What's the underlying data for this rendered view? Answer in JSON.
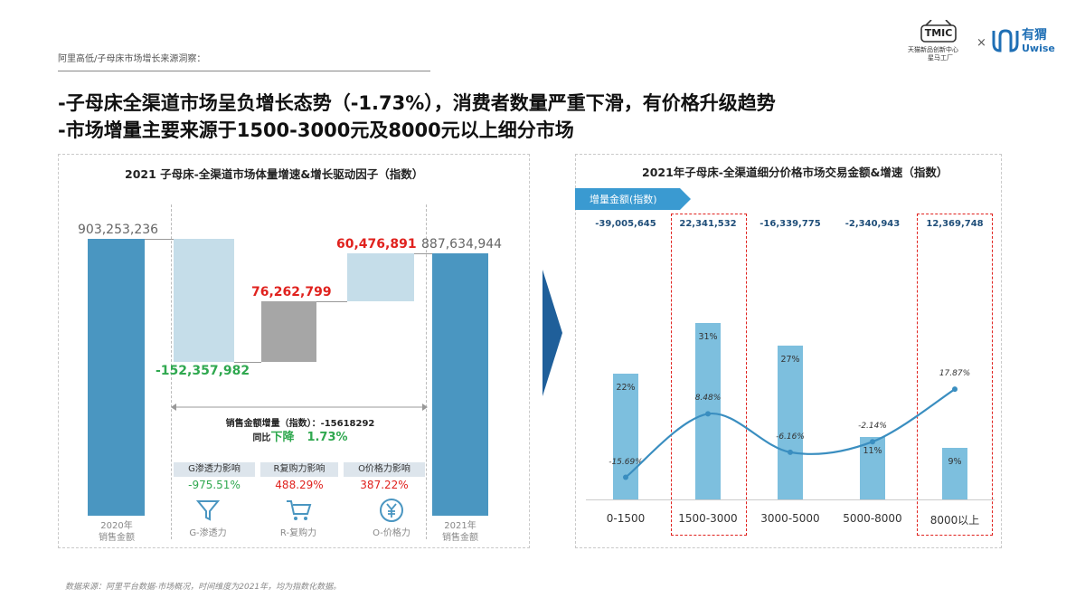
{
  "breadcrumb": "阿里高低/子母床市场增长来源洞察：",
  "headline": {
    "line1": "-子母床全渠道市场呈负增长态势（-1.73%），消费者数量严重下滑，有价格升级趋势",
    "line2": "-市场增量主要来源于1500-3000元及8000元以上细分市场"
  },
  "logos": {
    "tmic_badge": "TMIC",
    "tmic_text": "天猫新品创新中心",
    "tmic_sub": "星马工厂",
    "times": "×",
    "uwise_cn": "有猬",
    "uwise_en": "Uwise"
  },
  "left_chart": {
    "title": "2021 子母床-全渠道市场体量增速&增长驱动因子（指数）",
    "labels": {
      "start_value": "903,253,236",
      "g_value": "-152,357,982",
      "r_value": "76,262,799",
      "o_value": "60,476,891",
      "end_value": "887,634,944"
    },
    "summary": {
      "line1": "销售金额增量（指数）：-15618292",
      "tongbi": "同比",
      "xiajiang": "下降",
      "pct": "1.73%"
    },
    "factors": [
      {
        "head": "G渗透力影响",
        "value": "-975.51%",
        "color": "#2fa84f"
      },
      {
        "head": "R复购力影响",
        "value": "488.29%",
        "color": "#e0221e"
      },
      {
        "head": "O价格力影响",
        "value": "387.22%",
        "color": "#e0221e"
      }
    ],
    "bottom_labels": {
      "y2020": "2020年",
      "y2020_sub": "销售金额",
      "g": "G-渗透力",
      "r": "R-复购力",
      "o": "O-价格力",
      "y2021": "2021年",
      "y2021_sub": "销售金额"
    }
  },
  "right_chart": {
    "title": "2021年子母床-全渠道细分价格市场交易金额&增速（指数）",
    "tag": "增量金额(指数)"
  },
  "chart_data": [
    {
      "type": "bar",
      "subtype": "waterfall",
      "title": "2021 子母床-全渠道市场体量增速&增长驱动因子（指数）",
      "categories": [
        "2020年销售金额",
        "G-渗透力",
        "R-复购力",
        "O-价格力",
        "2021年销售金额"
      ],
      "values": [
        903253236,
        -152357982,
        76262799,
        60476891,
        887634944
      ],
      "colors": {
        "total": "#4a96c1",
        "g": "#c5dde9",
        "r": "#a6a6a6",
        "o": "#c5dde9"
      }
    },
    {
      "type": "bar",
      "title": "2021年子母床-全渠道细分价格市场交易金额&增速（指数）",
      "categories": [
        "0-1500",
        "1500-3000",
        "3000-5000",
        "5000-8000",
        "8000以上"
      ],
      "series": [
        {
          "name": "",
          "kind": "bar",
          "values": [
            22,
            31,
            27,
            11,
            9
          ],
          "labels": [
            "22%",
            "31%",
            "27%",
            "11%",
            "9%"
          ]
        },
        {
          "name": "",
          "kind": "line",
          "values": [
            -15.69,
            8.48,
            -6.16,
            -2.14,
            17.87
          ],
          "labels": [
            "-15.69%",
            "8.48%",
            "-6.16%",
            "-2.14%",
            "17.87%"
          ]
        }
      ],
      "increments": [
        "-39,005,645",
        "22,341,532",
        "-16,339,775",
        "-2,340,943",
        "12,369,748"
      ],
      "highlighted": [
        "1500-3000",
        "8000以上"
      ],
      "bar_color": "#7dbfde",
      "line_color": "#3a8ec0",
      "highlight_color": "#e0221e"
    }
  ],
  "source": "数据来源：阿里平台数据-市场概况，时间维度为2021年，均为指数化数据。"
}
